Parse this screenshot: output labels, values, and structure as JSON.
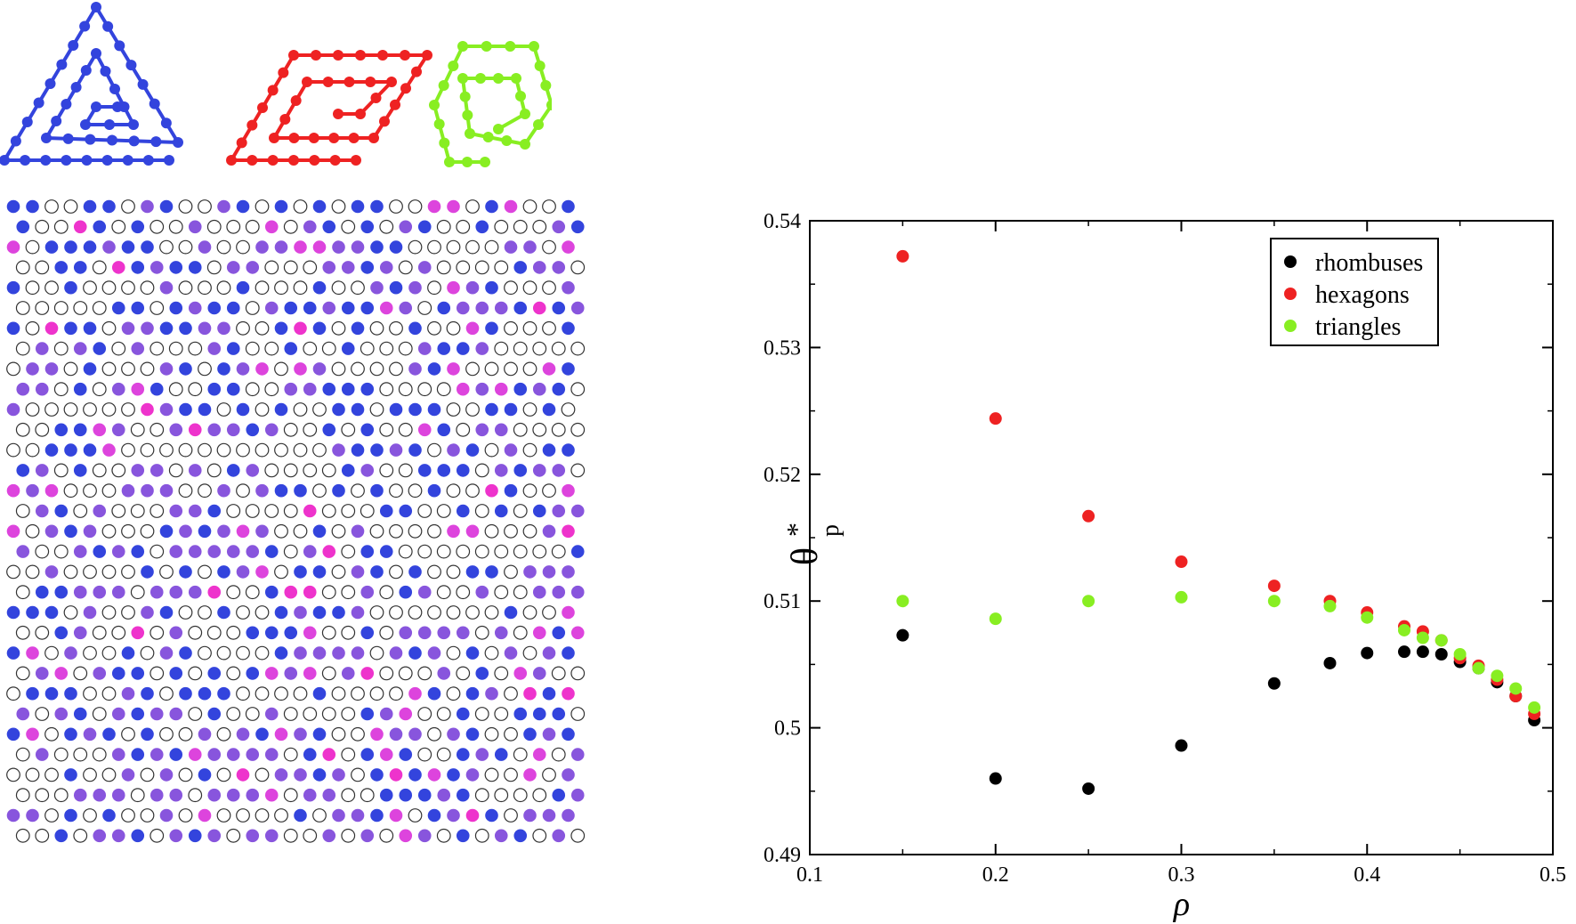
{
  "shapes": [
    {
      "name": "triangle-spiral",
      "color": "#3344dd"
    },
    {
      "name": "rhombus-spiral",
      "color": "#ee2222"
    },
    {
      "name": "hexagon-spiral",
      "color": "#88ee22"
    }
  ],
  "lattice": {
    "colors": {
      "empty": "#ffffff",
      "blue": "#3344dd",
      "purple": "#8855dd",
      "pink": "#dd44dd",
      "magenta": "#ee33cc"
    }
  },
  "chart_data": {
    "type": "scatter",
    "xlabel": "ρ",
    "ylabel": "θ",
    "ylabel_sup": "*",
    "ylabel_sub": "p",
    "xlim": [
      0.1,
      0.5
    ],
    "ylim": [
      0.49,
      0.54
    ],
    "xticks": [
      "0.1",
      "0.2",
      "0.3",
      "0.4",
      "0.5"
    ],
    "yticks": [
      "0.49",
      "0.5",
      "0.51",
      "0.52",
      "0.53",
      "0.54"
    ],
    "legend_position": "top-right",
    "series": [
      {
        "name": "rhombuses",
        "color": "#000000",
        "x": [
          0.15,
          0.2,
          0.25,
          0.3,
          0.35,
          0.38,
          0.4,
          0.42,
          0.43,
          0.44,
          0.45,
          0.46,
          0.47,
          0.48,
          0.49
        ],
        "y": [
          0.5073,
          0.496,
          0.4952,
          0.4986,
          0.5035,
          0.5051,
          0.5059,
          0.506,
          0.506,
          0.5058,
          0.5052,
          0.5047,
          0.5036,
          0.5025,
          0.5006
        ]
      },
      {
        "name": "hexagons",
        "color": "#ee2222",
        "x": [
          0.15,
          0.2,
          0.25,
          0.3,
          0.35,
          0.38,
          0.4,
          0.42,
          0.43,
          0.44,
          0.45,
          0.46,
          0.47,
          0.48,
          0.49
        ],
        "y": [
          0.5372,
          0.5244,
          0.5167,
          0.5131,
          0.5112,
          0.51,
          0.5091,
          0.508,
          0.5076,
          0.5069,
          0.5055,
          0.5049,
          0.5038,
          0.5025,
          0.5011
        ]
      },
      {
        "name": "triangles",
        "color": "#88ee22",
        "x": [
          0.15,
          0.2,
          0.25,
          0.3,
          0.35,
          0.38,
          0.4,
          0.42,
          0.43,
          0.44,
          0.45,
          0.46,
          0.47,
          0.48,
          0.49
        ],
        "y": [
          0.51,
          0.5086,
          0.51,
          0.5103,
          0.51,
          0.5096,
          0.5087,
          0.5077,
          0.5071,
          0.5069,
          0.5058,
          0.5047,
          0.5041,
          0.5031,
          0.5016
        ]
      }
    ]
  }
}
